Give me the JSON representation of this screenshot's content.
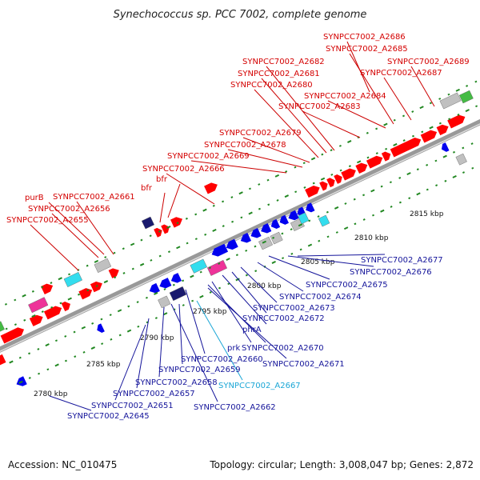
{
  "title": "Synechococcus sp. PCC 7002, complete genome",
  "footer": {
    "accession": "Accession: NC_010475",
    "summary": "Topology: circular; Length: 3,008,047 bp; Genes: 2,872"
  },
  "colors": {
    "forward_gene": "#ff0000",
    "reverse_gene": "#0000ee",
    "rna_cyan": "#33ddee",
    "misc_pink": "#ee3399",
    "gray_feature": "#c0c0c0",
    "navy_feature": "#1a1a6e",
    "green_feature": "#44bb44",
    "tick_green": "#228822",
    "backbone": "#999999"
  },
  "scale_ticks": [
    "2780 kbp",
    "2785 kbp",
    "2790 kbp",
    "2795 kbp",
    "2800 kbp",
    "2805 kbp",
    "2810 kbp",
    "2815 kbp"
  ],
  "forward_labels": [
    "SYNPCC7002_A2686",
    "SYNPCC7002_A2685",
    "SYNPCC7002_A2689",
    "SYNPCC7002_A2682",
    "SYNPCC7002_A2687",
    "SYNPCC7002_A2681",
    "SYNPCC7002_A2680",
    "SYNPCC7002_A2684",
    "SYNPCC7002_A2683",
    "SYNPCC7002_A2679",
    "SYNPCC7002_A2678",
    "SYNPCC7002_A2669",
    "SYNPCC7002_A2666",
    "bfr",
    "bfr",
    "purB",
    "SYNPCC7002_A2661",
    "SYNPCC7002_A2656",
    "SYNPCC7002_A2655"
  ],
  "reverse_labels": [
    "SYNPCC7002_A2677",
    "SYNPCC7002_A2676",
    "SYNPCC7002_A2675",
    "SYNPCC7002_A2674",
    "SYNPCC7002_A2673",
    "SYNPCC7002_A2672",
    "phrA",
    "prk",
    "SYNPCC7002_A2670",
    "SYNPCC7002_A2660",
    "SYNPCC7002_A2671",
    "SYNPCC7002_A2659",
    "SYNPCC7002_A2658",
    "SYNPCC7002_A2667",
    "SYNPCC7002_A2657",
    "SYNPCC7002_A2651",
    "SYNPCC7002_A2662",
    "SYNPCC7002_A2645"
  ]
}
